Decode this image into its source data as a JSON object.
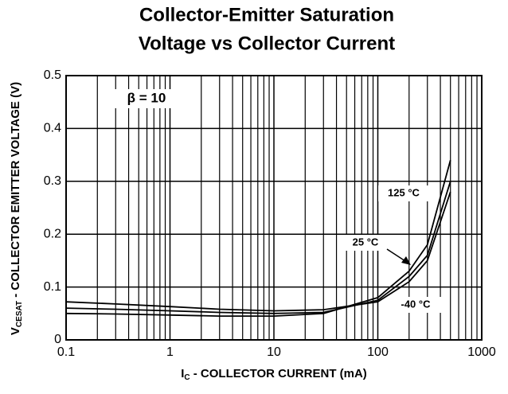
{
  "chart_data": {
    "type": "line",
    "title": [
      "Collector-Emitter Saturation",
      "Voltage vs Collector Current"
    ],
    "ylabel_symbol": "V",
    "ylabel_subscript": "CESAT",
    "ylabel": " - COLLECTOR EMITTER VOLTAGE (V)",
    "xlabel_symbol": "I",
    "xlabel_subscript": "C",
    "xlabel": " - COLLECTOR CURRENT  (mA)",
    "annotation": "β = 10",
    "log_x": true,
    "xlim": [
      0.1,
      1000
    ],
    "ylim": [
      0,
      0.5
    ],
    "xticks": [
      0.1,
      1,
      10,
      100,
      1000
    ],
    "xminor": [
      0.2,
      0.3,
      0.4,
      0.5,
      0.6,
      0.7,
      0.8,
      0.9,
      2,
      3,
      4,
      5,
      6,
      7,
      8,
      9,
      20,
      30,
      40,
      50,
      60,
      70,
      80,
      90,
      200,
      300,
      400,
      500,
      600,
      700,
      800,
      900
    ],
    "yticks": [
      0,
      0.1,
      0.2,
      0.3,
      0.4,
      0.5
    ],
    "grid": true,
    "x": [
      0.1,
      0.3,
      1,
      3,
      10,
      30,
      100,
      200,
      300,
      500
    ],
    "series": [
      {
        "name": "125 °C",
        "color": "#000000",
        "values": [
          0.05,
          0.049,
          0.047,
          0.045,
          0.045,
          0.05,
          0.08,
          0.13,
          0.18,
          0.34
        ]
      },
      {
        "name": "25 °C",
        "color": "#000000",
        "values": [
          0.06,
          0.058,
          0.055,
          0.052,
          0.05,
          0.052,
          0.075,
          0.12,
          0.16,
          0.3
        ]
      },
      {
        "name": "-40 °C",
        "color": "#000000",
        "values": [
          0.072,
          0.068,
          0.063,
          0.058,
          0.055,
          0.057,
          0.072,
          0.11,
          0.15,
          0.28
        ]
      }
    ]
  }
}
